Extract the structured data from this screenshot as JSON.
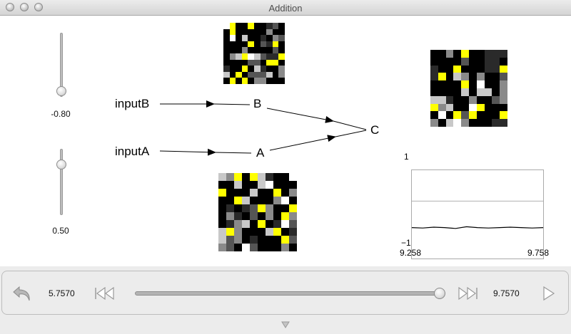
{
  "window": {
    "title": "Addition"
  },
  "sliders": [
    {
      "name": "inputB-slider",
      "value_label": "-0.80",
      "value": -0.8
    },
    {
      "name": "inputA-slider",
      "value_label": "0.50",
      "value": 0.5
    }
  ],
  "nodes": {
    "inputB": "inputB",
    "inputA": "inputA",
    "B": "B",
    "A": "A",
    "C": "C"
  },
  "plot": {
    "y_max": "1",
    "y_min": "−1",
    "x_min": "9.258",
    "x_max": "9.758"
  },
  "chart_data": {
    "type": "line",
    "x_range": [
      9.258,
      9.758
    ],
    "ylim": [
      -1,
      1
    ],
    "reference_line_y": 0.3,
    "series": [
      {
        "values": [
          -0.3,
          -0.31,
          -0.29,
          -0.3,
          -0.32,
          -0.28,
          -0.3,
          -0.31,
          -0.3,
          -0.29,
          -0.3,
          -0.31,
          -0.3
        ]
      }
    ]
  },
  "controls": {
    "start_time": "5.7570",
    "end_time": "9.7570",
    "playhead_fraction": 1.0
  },
  "colors": {
    "yellow": "#ffff00",
    "plot_line": "#000000"
  }
}
